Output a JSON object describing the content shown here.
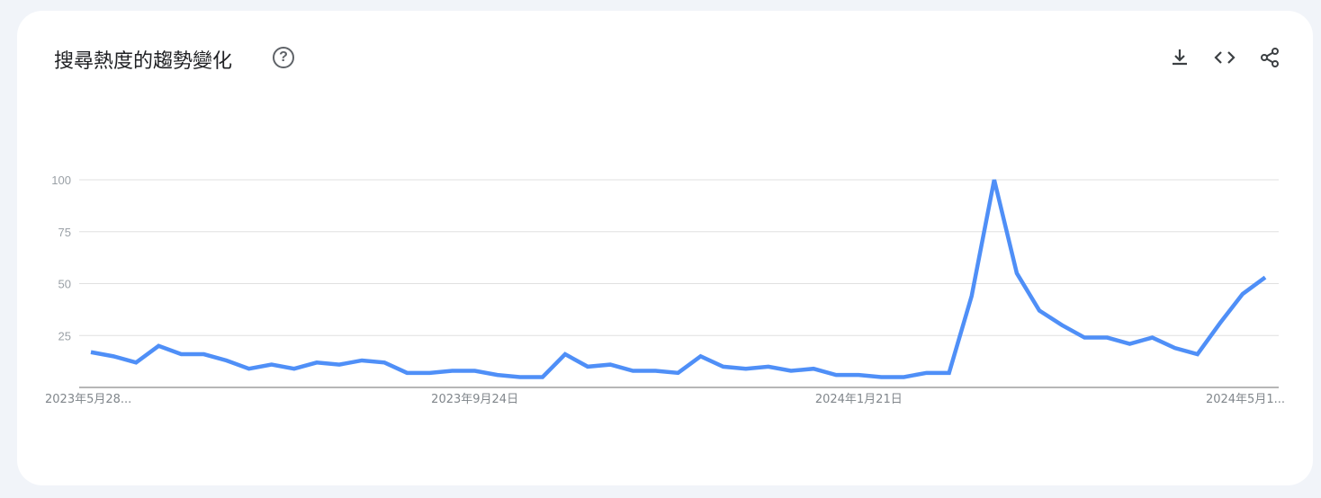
{
  "header": {
    "title": "搜尋熱度的趨勢變化",
    "help_icon": "help-circle-icon",
    "tools": [
      {
        "name": "download-icon"
      },
      {
        "name": "embed-icon"
      },
      {
        "name": "share-icon"
      }
    ]
  },
  "chart_data": {
    "type": "line",
    "title": "",
    "xlabel": "",
    "ylabel": "",
    "ylim": [
      0,
      100
    ],
    "yticks": [
      25,
      50,
      75,
      100
    ],
    "ytick_labels": [
      "25",
      "50",
      "75",
      "100"
    ],
    "grid": true,
    "line_color": "#4f8ff7",
    "x_start": "2023-05-28",
    "x_interval": "weekly",
    "xtick_labels": [
      {
        "index": 0,
        "label": "2023年5月28..."
      },
      {
        "index": 17,
        "label": "2023年9月24日"
      },
      {
        "index": 34,
        "label": "2024年1月21日"
      },
      {
        "index": 52,
        "label": "2024年5月1..."
      }
    ],
    "values": [
      17,
      15,
      12,
      20,
      16,
      16,
      13,
      9,
      11,
      9,
      12,
      11,
      13,
      12,
      7,
      7,
      8,
      8,
      6,
      5,
      5,
      16,
      10,
      11,
      8,
      8,
      7,
      15,
      10,
      9,
      10,
      8,
      9,
      6,
      6,
      5,
      5,
      7,
      7,
      44,
      100,
      55,
      37,
      30,
      24,
      24,
      21,
      24,
      19,
      16,
      31,
      45,
      53
    ]
  }
}
